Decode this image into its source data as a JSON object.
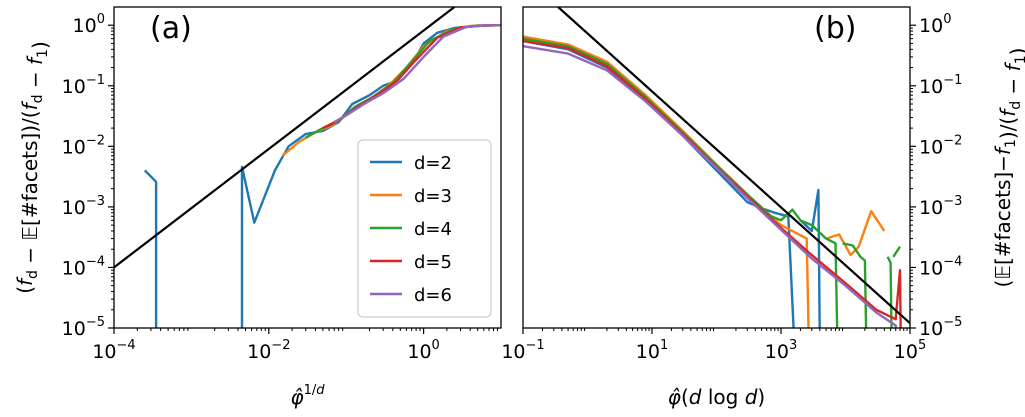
{
  "chart_data": [
    {
      "type": "line",
      "panel_label": "(a)",
      "xlabel": "φ̂^{1/d}",
      "ylabel": "(f_d − 𝔼[#facets])/(f_d − f_1)",
      "xscale": "log",
      "yscale": "log",
      "xlim": [
        0.0001,
        10
      ],
      "ylim": [
        1e-05,
        2
      ],
      "x_ticks": [
        {
          "base": "10",
          "exp": "−4",
          "value": 0.0001
        },
        {
          "base": "10",
          "exp": "−2",
          "value": 0.01
        },
        {
          "base": "10",
          "exp": "0",
          "value": 1
        }
      ],
      "y_ticks": [
        {
          "base": "10",
          "exp": "−5",
          "value": 1e-05
        },
        {
          "base": "10",
          "exp": "−4",
          "value": 0.0001
        },
        {
          "base": "10",
          "exp": "−3",
          "value": 0.001
        },
        {
          "base": "10",
          "exp": "−2",
          "value": 0.01
        },
        {
          "base": "10",
          "exp": "−1",
          "value": 0.1
        },
        {
          "base": "10",
          "exp": "0",
          "value": 1
        }
      ],
      "legend_position": "lower-right",
      "series": [
        {
          "name": "d=2",
          "color": "#1f77b4",
          "points": [
            [
              0.00025,
              0.004
            ],
            [
              0.00035,
              0.0026
            ],
            [
              0.00035,
              1e-06
            ],
            null,
            [
              0.0045,
              1e-06
            ],
            [
              0.0045,
              0.0046
            ],
            [
              0.0065,
              0.00055
            ],
            [
              0.012,
              0.004
            ],
            [
              0.018,
              0.01
            ],
            [
              0.03,
              0.016
            ],
            [
              0.05,
              0.018
            ],
            [
              0.08,
              0.025
            ],
            [
              0.12,
              0.05
            ],
            [
              0.2,
              0.07
            ],
            [
              0.3,
              0.1
            ],
            [
              0.45,
              0.12
            ],
            [
              0.6,
              0.18
            ],
            [
              0.8,
              0.3
            ],
            [
              1.0,
              0.5
            ],
            [
              1.5,
              0.75
            ],
            [
              2.5,
              0.9
            ],
            [
              5,
              0.98
            ],
            [
              10,
              1.0
            ]
          ]
        },
        {
          "name": "d=3",
          "color": "#ff7f0e",
          "points": [
            [
              0.015,
              0.007
            ],
            [
              0.025,
              0.012
            ],
            [
              0.04,
              0.017
            ],
            [
              0.07,
              0.023
            ],
            [
              0.12,
              0.04
            ],
            [
              0.2,
              0.06
            ],
            [
              0.35,
              0.1
            ],
            [
              0.6,
              0.2
            ],
            [
              1.0,
              0.45
            ],
            [
              2,
              0.8
            ],
            [
              4,
              0.97
            ],
            [
              10,
              1.0
            ]
          ]
        },
        {
          "name": "d=4",
          "color": "#2ca02c",
          "points": [
            [
              0.03,
              0.014
            ],
            [
              0.05,
              0.02
            ],
            [
              0.08,
              0.026
            ],
            [
              0.13,
              0.045
            ],
            [
              0.22,
              0.065
            ],
            [
              0.4,
              0.11
            ],
            [
              0.7,
              0.25
            ],
            [
              1.2,
              0.55
            ],
            [
              2.5,
              0.88
            ],
            [
              5,
              0.99
            ],
            [
              10,
              1.0
            ]
          ]
        },
        {
          "name": "d=5",
          "color": "#d62728",
          "points": [
            [
              0.05,
              0.02
            ],
            [
              0.08,
              0.027
            ],
            [
              0.14,
              0.045
            ],
            [
              0.25,
              0.07
            ],
            [
              0.45,
              0.12
            ],
            [
              0.8,
              0.27
            ],
            [
              1.5,
              0.62
            ],
            [
              3,
              0.92
            ],
            [
              6,
              0.99
            ],
            [
              10,
              1.0
            ]
          ]
        },
        {
          "name": "d=6",
          "color": "#9467bd",
          "points": [
            [
              0.07,
              0.025
            ],
            [
              0.11,
              0.035
            ],
            [
              0.17,
              0.05
            ],
            [
              0.3,
              0.075
            ],
            [
              0.55,
              0.13
            ],
            [
              1.0,
              0.3
            ],
            [
              1.8,
              0.65
            ],
            [
              3.5,
              0.93
            ],
            [
              6,
              0.99
            ],
            [
              10,
              1.0
            ]
          ]
        },
        {
          "name": "",
          "color": "#000000",
          "points": [
            [
              0.0001,
              0.0001
            ],
            [
              2.5,
              2
            ]
          ]
        }
      ]
    },
    {
      "type": "line",
      "panel_label": "(b)",
      "xlabel": "φ̂(d log d)",
      "ylabel": "(𝔼[#facets]−f_1)/(f_d − f_1)",
      "xscale": "log",
      "yscale": "log",
      "xlim": [
        0.1,
        100000
      ],
      "ylim": [
        1e-05,
        2
      ],
      "x_ticks": [
        {
          "base": "10",
          "exp": "−1",
          "value": 0.1
        },
        {
          "base": "10",
          "exp": "1",
          "value": 10
        },
        {
          "base": "10",
          "exp": "3",
          "value": 1000
        },
        {
          "base": "10",
          "exp": "5",
          "value": 100000
        }
      ],
      "y_ticks": [
        {
          "base": "10",
          "exp": "−5",
          "value": 1e-05
        },
        {
          "base": "10",
          "exp": "−4",
          "value": 0.0001
        },
        {
          "base": "10",
          "exp": "−3",
          "value": 0.001
        },
        {
          "base": "10",
          "exp": "−2",
          "value": 0.01
        },
        {
          "base": "10",
          "exp": "−1",
          "value": 0.1
        },
        {
          "base": "10",
          "exp": "0",
          "value": 1
        }
      ],
      "series": [
        {
          "name": "d=2",
          "color": "#1f77b4",
          "points": [
            [
              0.1,
              0.55
            ],
            [
              0.5,
              0.4
            ],
            [
              2,
              0.2
            ],
            [
              8,
              0.06
            ],
            [
              30,
              0.015
            ],
            [
              100,
              0.004
            ],
            [
              300,
              0.0012
            ],
            [
              500,
              0.00095
            ],
            [
              800,
              0.0008
            ],
            [
              1300,
              0.0007
            ],
            [
              1600,
              6e-06
            ],
            null,
            [
              2000,
              0.0006
            ],
            [
              3000,
              0.0004
            ],
            [
              3800,
              0.0019
            ],
            [
              4000,
              6e-06
            ]
          ]
        },
        {
          "name": "d=3",
          "color": "#ff7f0e",
          "points": [
            [
              0.1,
              0.65
            ],
            [
              0.5,
              0.48
            ],
            [
              2,
              0.25
            ],
            [
              8,
              0.07
            ],
            [
              30,
              0.018
            ],
            [
              100,
              0.005
            ],
            [
              300,
              0.0016
            ],
            [
              1000,
              0.0005
            ],
            [
              2500,
              0.0003
            ],
            [
              2700,
              6e-06
            ],
            null,
            [
              5000,
              0.0003
            ],
            [
              8000,
              0.00035
            ],
            [
              12000,
              0.00016
            ],
            [
              16000,
              0.00022
            ],
            [
              25000,
              0.00085
            ],
            [
              40000,
              0.0004
            ]
          ]
        },
        {
          "name": "d=4",
          "color": "#2ca02c",
          "points": [
            [
              0.1,
              0.6
            ],
            [
              0.5,
              0.45
            ],
            [
              2,
              0.23
            ],
            [
              8,
              0.065
            ],
            [
              30,
              0.017
            ],
            [
              100,
              0.0048
            ],
            [
              300,
              0.0016
            ],
            [
              700,
              0.0007
            ],
            [
              1000,
              0.0006
            ],
            [
              1500,
              0.0009
            ],
            [
              2000,
              0.0006
            ],
            [
              3000,
              0.0005
            ],
            [
              5000,
              0.0003
            ],
            [
              7000,
              0.00025
            ],
            [
              7500,
              6e-06
            ],
            null,
            [
              9000,
              0.00025
            ],
            [
              13000,
              0.00023
            ],
            [
              17000,
              0.00015
            ],
            [
              20000,
              0.00013
            ],
            [
              21000,
              6e-06
            ],
            null,
            [
              45000,
              0.00015
            ],
            [
              50000,
              0.00012
            ],
            [
              52000,
              6e-06
            ],
            null,
            [
              55000,
              0.00015
            ],
            [
              70000,
              0.00022
            ]
          ]
        },
        {
          "name": "d=5",
          "color": "#d62728",
          "points": [
            [
              0.1,
              0.55
            ],
            [
              0.5,
              0.42
            ],
            [
              2,
              0.21
            ],
            [
              8,
              0.06
            ],
            [
              30,
              0.016
            ],
            [
              100,
              0.0046
            ],
            [
              300,
              0.0015
            ],
            [
              1000,
              0.00045
            ],
            [
              3000,
              0.00016
            ],
            [
              10000,
              5.5e-05
            ],
            [
              30000,
              2e-05
            ],
            [
              60000,
              1.4e-05
            ],
            [
              70000,
              9e-05
            ],
            [
              72000,
              6e-06
            ]
          ]
        },
        {
          "name": "d=6",
          "color": "#9467bd",
          "points": [
            [
              0.1,
              0.45
            ],
            [
              0.5,
              0.34
            ],
            [
              2,
              0.18
            ],
            [
              8,
              0.055
            ],
            [
              30,
              0.015
            ],
            [
              100,
              0.0044
            ],
            [
              300,
              0.0014
            ],
            [
              1000,
              0.00042
            ],
            [
              3000,
              0.00014
            ],
            [
              10000,
              5e-05
            ],
            [
              30000,
              1.8e-05
            ],
            [
              60000,
              1.1e-05
            ],
            [
              62000,
              6e-06
            ]
          ]
        },
        {
          "name": "",
          "color": "#000000",
          "points": [
            [
              0.35,
              2
            ],
            [
              100000,
              1.2e-05
            ]
          ]
        }
      ]
    }
  ]
}
